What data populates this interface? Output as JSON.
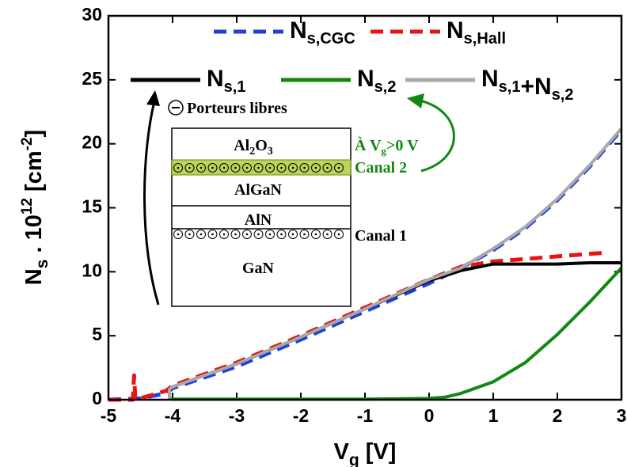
{
  "chart_data": {
    "type": "line",
    "xlabel": [
      "V",
      "g",
      " [V]"
    ],
    "ylabel": [
      "N",
      "s",
      " . 10",
      "12",
      " [cm",
      "-2",
      "]"
    ],
    "xlim": [
      -5,
      3
    ],
    "xticks": [
      -5,
      -4,
      -3,
      -2,
      -1,
      0,
      1,
      2,
      3
    ],
    "ylim": [
      0,
      30
    ],
    "yticks": [
      0,
      5,
      10,
      15,
      20,
      25,
      30
    ],
    "series": [
      {
        "name": "Ns,CGC",
        "color": "#1f3fe0",
        "line_style": "dashed",
        "x": [
          -5,
          -4.5,
          -4.3,
          -4.1,
          -4,
          -3,
          -2,
          -1,
          0,
          0.5,
          1,
          1.5,
          2,
          2.5,
          3
        ],
        "values": [
          0,
          0.1,
          0.3,
          0.5,
          0.9,
          2.6,
          4.7,
          6.9,
          9.1,
          10.3,
          11.7,
          13.4,
          15.6,
          18.2,
          21.1
        ]
      },
      {
        "name": "Ns,Hall",
        "color": "#ee1111",
        "line_style": "dashed",
        "x": [
          -5,
          -4.62,
          -4.6,
          -4.58,
          -4.1,
          -4,
          -3,
          -2,
          -1,
          0,
          0.5,
          1,
          1.5,
          2,
          2.5,
          2.8
        ],
        "values": [
          0,
          0,
          1.9,
          0,
          0.7,
          1.1,
          2.9,
          5.0,
          7.2,
          9.4,
          10.4,
          10.8,
          11.0,
          11.2,
          11.4,
          11.5
        ]
      },
      {
        "name": "Ns,1",
        "color": "#000000",
        "line_style": "solid",
        "x": [
          -4.05,
          -4.05,
          -4,
          -3,
          -2,
          -1,
          0,
          0.25,
          0.5,
          1,
          1.5,
          2,
          2.5,
          3
        ],
        "values": [
          0,
          0.7,
          1.0,
          2.8,
          4.9,
          7.1,
          9.3,
          9.7,
          10.1,
          10.6,
          10.6,
          10.6,
          10.7,
          10.7
        ]
      },
      {
        "name": "Ns,2",
        "color": "#118811",
        "line_style": "solid",
        "x": [
          -4.05,
          -4.05,
          -4,
          -3,
          -2,
          -1,
          0,
          0.25,
          0.5,
          1,
          1.5,
          2,
          2.5,
          3
        ],
        "values": [
          0.9,
          0.1,
          0.05,
          0.05,
          0.05,
          0.05,
          0.1,
          0.2,
          0.5,
          1.4,
          2.9,
          5.1,
          7.6,
          10.3
        ]
      },
      {
        "name": "Ns,1+Ns,2",
        "color": "#a8a8a8",
        "line_style": "solid",
        "x": [
          -4.05,
          -4.05,
          -4,
          -3,
          -2,
          -1,
          0,
          0.5,
          1,
          1.5,
          2,
          2.5,
          3
        ],
        "values": [
          0,
          0.8,
          1.0,
          2.8,
          4.9,
          7.1,
          9.4,
          10.3,
          11.8,
          13.5,
          15.7,
          18.3,
          21.2
        ]
      }
    ],
    "annotations": {
      "free_carriers": "Porteurs libres",
      "layers": [
        [
          "Al",
          "2",
          "O",
          "3"
        ],
        "AlGaN",
        "AlN",
        "GaN"
      ],
      "channel_2": "Canal 2",
      "channel_1": "Canal 1",
      "gate_condition": [
        "À V",
        "g",
        ">0 V"
      ]
    }
  }
}
